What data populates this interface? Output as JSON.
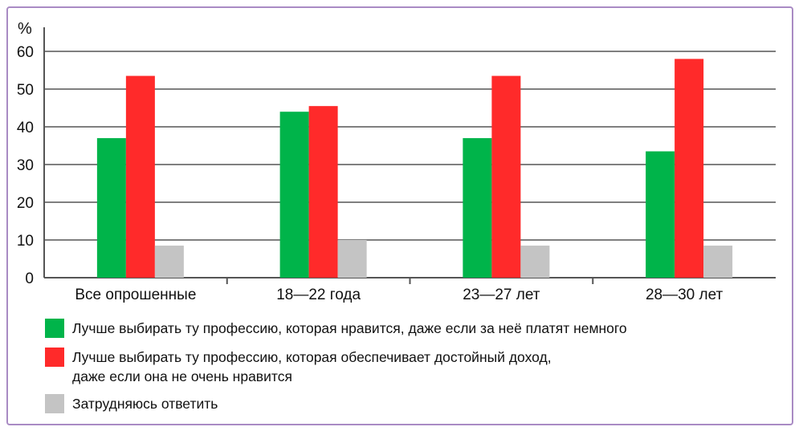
{
  "chart_data": {
    "type": "bar",
    "ylabel": "%",
    "ylim": [
      0,
      60
    ],
    "yticks": [
      0,
      10,
      20,
      30,
      40,
      50,
      60
    ],
    "grid": true,
    "legend_position": "bottom",
    "categories": [
      "Все опрошенные",
      "18—22 года",
      "23—27 лет",
      "28—30 лет"
    ],
    "series": [
      {
        "name": "Лучше выбирать ту профессию, которая нравится, даже если за неё платят немного",
        "values": [
          37,
          44,
          37,
          33.5
        ],
        "color": "#00b44a"
      },
      {
        "name": "Лучше выбирать ту профессию, которая обеспечивает достойный доход, даже если она не очень нравится",
        "values": [
          53.5,
          45.5,
          53.5,
          58
        ],
        "color": "#ff2a2a"
      },
      {
        "name": "Затрудняюсь ответить",
        "values": [
          8.5,
          10,
          8.5,
          8.5
        ],
        "color": "#c4c4c4"
      }
    ],
    "legend": [
      {
        "lines": [
          "Лучше выбирать ту профессию, которая нравится, даже если за неё платят немного"
        ]
      },
      {
        "lines": [
          "Лучше выбирать ту профессию, которая обеспечивает достойный доход,",
          "даже если она не очень нравится"
        ]
      },
      {
        "lines": [
          "Затрудняюсь ответить"
        ]
      }
    ]
  }
}
